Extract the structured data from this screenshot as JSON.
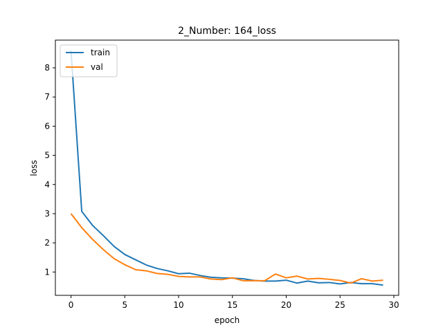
{
  "chart_data": {
    "type": "line",
    "title": "2_Number: 164_loss",
    "xlabel": "epoch",
    "ylabel": "loss",
    "xlim": [
      -1.45,
      30.45
    ],
    "ylim": [
      0.2,
      8.95
    ],
    "xticks": [
      0,
      5,
      10,
      15,
      20,
      25,
      30
    ],
    "yticks": [
      1,
      2,
      3,
      4,
      5,
      6,
      7,
      8
    ],
    "grid": false,
    "legend_position": "top-left",
    "x": [
      0,
      1,
      2,
      3,
      4,
      5,
      6,
      7,
      8,
      9,
      10,
      11,
      12,
      13,
      14,
      15,
      16,
      17,
      18,
      19,
      20,
      21,
      22,
      23,
      24,
      25,
      26,
      27,
      28,
      29
    ],
    "series": [
      {
        "name": "train",
        "color": "#1f77b4",
        "values": [
          8.6,
          3.08,
          2.6,
          2.25,
          1.88,
          1.6,
          1.42,
          1.24,
          1.12,
          1.04,
          0.94,
          0.96,
          0.88,
          0.82,
          0.8,
          0.79,
          0.77,
          0.71,
          0.69,
          0.69,
          0.72,
          0.62,
          0.69,
          0.63,
          0.64,
          0.59,
          0.64,
          0.6,
          0.6,
          0.55
        ]
      },
      {
        "name": "val",
        "color": "#ff7f0e",
        "values": [
          3.0,
          2.52,
          2.12,
          1.77,
          1.46,
          1.25,
          1.08,
          1.04,
          0.95,
          0.92,
          0.85,
          0.83,
          0.83,
          0.76,
          0.74,
          0.8,
          0.7,
          0.7,
          0.7,
          0.93,
          0.8,
          0.86,
          0.76,
          0.78,
          0.75,
          0.71,
          0.62,
          0.77,
          0.69,
          0.72
        ]
      }
    ]
  }
}
